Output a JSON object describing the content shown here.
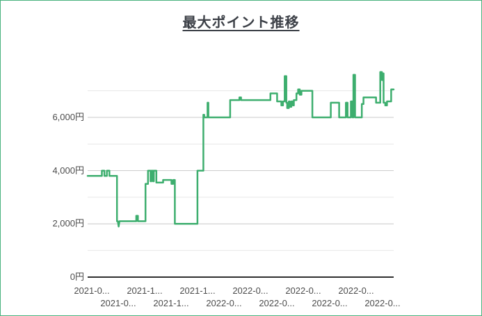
{
  "page": {
    "background": "#ffffff",
    "border_color": "#48b27d"
  },
  "chart_data": {
    "type": "line",
    "title": "最大ポイント推移",
    "legend": "none",
    "grid": true,
    "colors": {
      "line": "#3dae6e",
      "grid_major": "#c9c9c9",
      "grid_minor": "#e7e7e7",
      "axis": "#2e2e2e",
      "tick_label": "#4c4c4c",
      "title": "#3b3f46"
    },
    "y_axis": {
      "unit": "円",
      "range": [
        0,
        7700
      ],
      "major_ticks": [
        {
          "value": 0,
          "label": "0円"
        },
        {
          "value": 2000,
          "label": "2,000円"
        },
        {
          "value": 4000,
          "label": "4,000円"
        },
        {
          "value": 6000,
          "label": "6,000円"
        }
      ],
      "minor_tick_values": [
        1000,
        3000,
        5000,
        7000
      ]
    },
    "x_axis": {
      "stagger_rows": true,
      "tick_labels": [
        "2021-0...",
        "2021-0...",
        "2021-1...",
        "2021-1...",
        "2021-1...",
        "2022-0...",
        "2022-0...",
        "2022-0...",
        "2022-0...",
        "2022-0...",
        "2022-0...",
        "2022-0..."
      ]
    },
    "x_span_days": 365,
    "series": [
      {
        "name": "最大ポイント",
        "unit": "円",
        "points": [
          [
            0,
            3800
          ],
          [
            17,
            3800
          ],
          [
            17,
            4000
          ],
          [
            20,
            4000
          ],
          [
            20,
            3800
          ],
          [
            23,
            3800
          ],
          [
            23,
            4000
          ],
          [
            26,
            4000
          ],
          [
            26,
            3800
          ],
          [
            35,
            3800
          ],
          [
            35,
            2100
          ],
          [
            36,
            2100
          ],
          [
            37,
            1900
          ],
          [
            38,
            2100
          ],
          [
            58,
            2100
          ],
          [
            58,
            2300
          ],
          [
            60,
            2300
          ],
          [
            60,
            2100
          ],
          [
            69,
            2100
          ],
          [
            69,
            3500
          ],
          [
            72,
            3500
          ],
          [
            72,
            4000
          ],
          [
            75,
            4000
          ],
          [
            75,
            3600
          ],
          [
            76,
            3600
          ],
          [
            76,
            4000
          ],
          [
            78,
            4000
          ],
          [
            78,
            3600
          ],
          [
            79,
            3600
          ],
          [
            79,
            4000
          ],
          [
            82,
            4000
          ],
          [
            82,
            3550
          ],
          [
            90,
            3550
          ],
          [
            90,
            3650
          ],
          [
            100,
            3650
          ],
          [
            100,
            3500
          ],
          [
            102,
            3500
          ],
          [
            102,
            3650
          ],
          [
            104,
            3650
          ],
          [
            104,
            2000
          ],
          [
            131,
            2000
          ],
          [
            131,
            4000
          ],
          [
            138,
            4000
          ],
          [
            138,
            6100
          ],
          [
            139,
            6100
          ],
          [
            139,
            6000
          ],
          [
            143,
            6000
          ],
          [
            143,
            6550
          ],
          [
            144,
            6550
          ],
          [
            144,
            6000
          ],
          [
            170,
            6000
          ],
          [
            170,
            6650
          ],
          [
            181,
            6650
          ],
          [
            181,
            6750
          ],
          [
            183,
            6750
          ],
          [
            183,
            6650
          ],
          [
            218,
            6650
          ],
          [
            218,
            6900
          ],
          [
            226,
            6900
          ],
          [
            226,
            6600
          ],
          [
            231,
            6600
          ],
          [
            231,
            6450
          ],
          [
            233,
            6450
          ],
          [
            233,
            6600
          ],
          [
            235,
            6600
          ],
          [
            235,
            7550
          ],
          [
            237,
            7550
          ],
          [
            237,
            6550
          ],
          [
            238,
            6550
          ],
          [
            238,
            6350
          ],
          [
            240,
            6350
          ],
          [
            240,
            6600
          ],
          [
            241,
            6600
          ],
          [
            241,
            6400
          ],
          [
            243,
            6400
          ],
          [
            243,
            6600
          ],
          [
            245,
            6600
          ],
          [
            245,
            6450
          ],
          [
            246,
            6450
          ],
          [
            246,
            6650
          ],
          [
            249,
            6650
          ],
          [
            249,
            6900
          ],
          [
            251,
            6900
          ],
          [
            251,
            7050
          ],
          [
            253,
            7050
          ],
          [
            253,
            6850
          ],
          [
            255,
            6850
          ],
          [
            255,
            7000
          ],
          [
            268,
            7000
          ],
          [
            268,
            6000
          ],
          [
            290,
            6000
          ],
          [
            290,
            6550
          ],
          [
            300,
            6550
          ],
          [
            300,
            6000
          ],
          [
            308,
            6000
          ],
          [
            308,
            6550
          ],
          [
            310,
            6550
          ],
          [
            310,
            6000
          ],
          [
            314,
            6000
          ],
          [
            314,
            6600
          ],
          [
            316,
            6600
          ],
          [
            316,
            6000
          ],
          [
            317,
            6000
          ],
          [
            317,
            7600
          ],
          [
            319,
            7600
          ],
          [
            319,
            6000
          ],
          [
            327,
            6000
          ],
          [
            327,
            6500
          ],
          [
            329,
            6500
          ],
          [
            329,
            6750
          ],
          [
            344,
            6750
          ],
          [
            344,
            6550
          ],
          [
            349,
            6550
          ],
          [
            349,
            7700
          ],
          [
            351,
            7700
          ],
          [
            351,
            7400
          ],
          [
            352,
            7400
          ],
          [
            352,
            7650
          ],
          [
            353,
            7650
          ],
          [
            353,
            6550
          ],
          [
            355,
            6550
          ],
          [
            355,
            6450
          ],
          [
            357,
            6450
          ],
          [
            357,
            6600
          ],
          [
            362,
            6600
          ],
          [
            362,
            7050
          ],
          [
            365,
            7050
          ]
        ]
      }
    ]
  }
}
